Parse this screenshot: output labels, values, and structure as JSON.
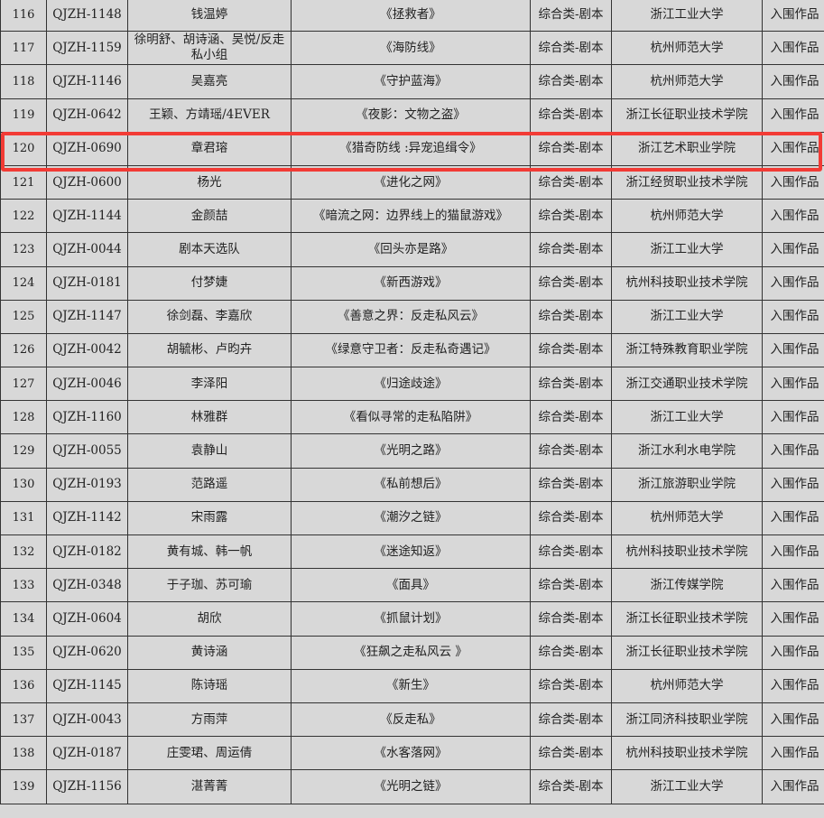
{
  "highlight_color": "#f23b35",
  "highlighted_row_no": "120",
  "rows": [
    {
      "no": "116",
      "code": "QJZH-1148",
      "authors": "钱温婷",
      "title": "《拯救者》",
      "category": "综合类-剧本",
      "school": "浙江工业大学",
      "status": "入围作品"
    },
    {
      "no": "117",
      "code": "QJZH-1159",
      "authors": "徐明舒、胡诗涵、吴悦/反走私小组",
      "title": "《海防线》",
      "category": "综合类-剧本",
      "school": "杭州师范大学",
      "status": "入围作品"
    },
    {
      "no": "118",
      "code": "QJZH-1146",
      "authors": "吴嘉亮",
      "title": "《守护蓝海》",
      "category": "综合类-剧本",
      "school": "杭州师范大学",
      "status": "入围作品"
    },
    {
      "no": "119",
      "code": "QJZH-0642",
      "authors": "王颖、方靖瑶/4EVER",
      "title": "《夜影：文物之盗》",
      "category": "综合类-剧本",
      "school": "浙江长征职业技术学院",
      "status": "入围作品"
    },
    {
      "no": "120",
      "code": "QJZH-0690",
      "authors": "章君瑢",
      "title": "《猎奇防线 :异宠追缉令》",
      "category": "综合类-剧本",
      "school": "浙江艺术职业学院",
      "status": "入围作品"
    },
    {
      "no": "121",
      "code": "QJZH-0600",
      "authors": "杨光",
      "title": "《进化之网》",
      "category": "综合类-剧本",
      "school": "浙江经贸职业技术学院",
      "status": "入围作品"
    },
    {
      "no": "122",
      "code": "QJZH-1144",
      "authors": "金颜喆",
      "title": "《暗流之网：边界线上的猫鼠游戏》",
      "category": "综合类-剧本",
      "school": "杭州师范大学",
      "status": "入围作品"
    },
    {
      "no": "123",
      "code": "QJZH-0044",
      "authors": "剧本天选队",
      "title": "《回头亦是路》",
      "category": "综合类-剧本",
      "school": "浙江工业大学",
      "status": "入围作品"
    },
    {
      "no": "124",
      "code": "QJZH-0181",
      "authors": "付梦婕",
      "title": "《新西游戏》",
      "category": "综合类-剧本",
      "school": "杭州科技职业技术学院",
      "status": "入围作品"
    },
    {
      "no": "125",
      "code": "QJZH-1147",
      "authors": "徐剑磊、李嘉欣",
      "title": "《善意之界：反走私风云》",
      "category": "综合类-剧本",
      "school": "浙江工业大学",
      "status": "入围作品"
    },
    {
      "no": "126",
      "code": "QJZH-0042",
      "authors": "胡毓彬、卢昀卉",
      "title": "《绿意守卫者：反走私奇遇记》",
      "category": "综合类-剧本",
      "school": "浙江特殊教育职业学院",
      "status": "入围作品"
    },
    {
      "no": "127",
      "code": "QJZH-0046",
      "authors": "李泽阳",
      "title": "《归途歧途》",
      "category": "综合类-剧本",
      "school": "浙江交通职业技术学院",
      "status": "入围作品"
    },
    {
      "no": "128",
      "code": "QJZH-1160",
      "authors": "林雅群",
      "title": "《看似寻常的走私陷阱》",
      "category": "综合类-剧本",
      "school": "浙江工业大学",
      "status": "入围作品"
    },
    {
      "no": "129",
      "code": "QJZH-0055",
      "authors": "袁静山",
      "title": "《光明之路》",
      "category": "综合类-剧本",
      "school": "浙江水利水电学院",
      "status": "入围作品"
    },
    {
      "no": "130",
      "code": "QJZH-0193",
      "authors": "范路遥",
      "title": "《私前想后》",
      "category": "综合类-剧本",
      "school": "浙江旅游职业学院",
      "status": "入围作品"
    },
    {
      "no": "131",
      "code": "QJZH-1142",
      "authors": "宋雨露",
      "title": "《潮汐之链》",
      "category": "综合类-剧本",
      "school": "杭州师范大学",
      "status": "入围作品"
    },
    {
      "no": "132",
      "code": "QJZH-0182",
      "authors": "黄有城、韩一帆",
      "title": "《迷途知返》",
      "category": "综合类-剧本",
      "school": "杭州科技职业技术学院",
      "status": "入围作品"
    },
    {
      "no": "133",
      "code": "QJZH-0348",
      "authors": "于子珈、苏可瑜",
      "title": "《面具》",
      "category": "综合类-剧本",
      "school": "浙江传媒学院",
      "status": "入围作品"
    },
    {
      "no": "134",
      "code": "QJZH-0604",
      "authors": "胡欣",
      "title": "《抓鼠计划》",
      "category": "综合类-剧本",
      "school": "浙江长征职业技术学院",
      "status": "入围作品"
    },
    {
      "no": "135",
      "code": "QJZH-0620",
      "authors": "黄诗涵",
      "title": "《狂飙之走私风云 》",
      "category": "综合类-剧本",
      "school": "浙江长征职业技术学院",
      "status": "入围作品"
    },
    {
      "no": "136",
      "code": "QJZH-1145",
      "authors": "陈诗瑶",
      "title": "《新生》",
      "category": "综合类-剧本",
      "school": "杭州师范大学",
      "status": "入围作品"
    },
    {
      "no": "137",
      "code": "QJZH-0043",
      "authors": "方雨萍",
      "title": "《反走私》",
      "category": "综合类-剧本",
      "school": "浙江同济科技职业学院",
      "status": "入围作品"
    },
    {
      "no": "138",
      "code": "QJZH-0187",
      "authors": "庄雯珺、周运倩",
      "title": "《水客落网》",
      "category": "综合类-剧本",
      "school": "杭州科技职业技术学院",
      "status": "入围作品"
    },
    {
      "no": "139",
      "code": "QJZH-1156",
      "authors": "湛菁菁",
      "title": "《光明之链》",
      "category": "综合类-剧本",
      "school": "浙江工业大学",
      "status": "入围作品"
    }
  ]
}
